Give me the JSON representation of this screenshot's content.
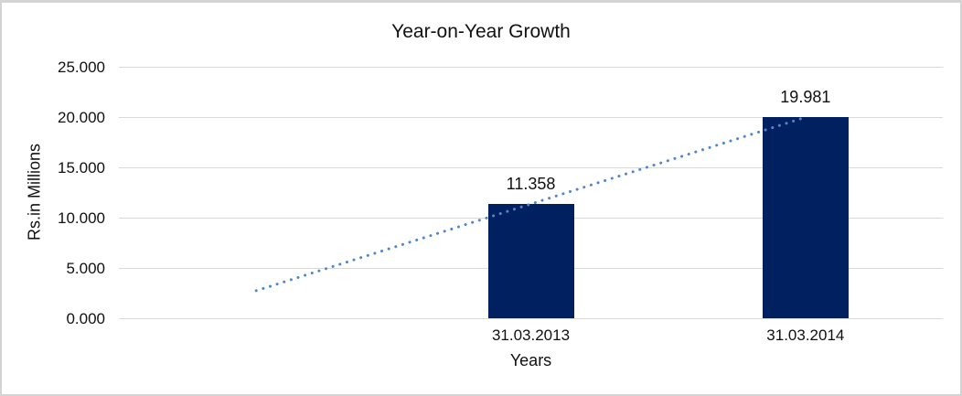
{
  "chart_data": {
    "type": "bar",
    "title": "Year-on-Year Growth",
    "xlabel": "Years",
    "ylabel": "Rs.in Millions",
    "ylim": [
      0,
      25
    ],
    "ytick_labels": [
      "0.000",
      "5.000",
      "10.000",
      "15.000",
      "20.000",
      "25.000"
    ],
    "categories": [
      "",
      "31.03.2013",
      "31.03.2014"
    ],
    "values": [
      null,
      11.358,
      19.981
    ],
    "data_labels": [
      null,
      "11.358",
      "19.981"
    ],
    "grid": true,
    "legend": "none",
    "colors": {
      "bar": "#002060",
      "trendline": "#4f87c9",
      "gridline": "#d9d9d9",
      "text": "#111111"
    },
    "trendline": {
      "style": "dotted",
      "points": [
        {
          "slot": 0,
          "value": 2.74
        },
        {
          "slot": 2,
          "value": 19.981
        }
      ]
    }
  }
}
